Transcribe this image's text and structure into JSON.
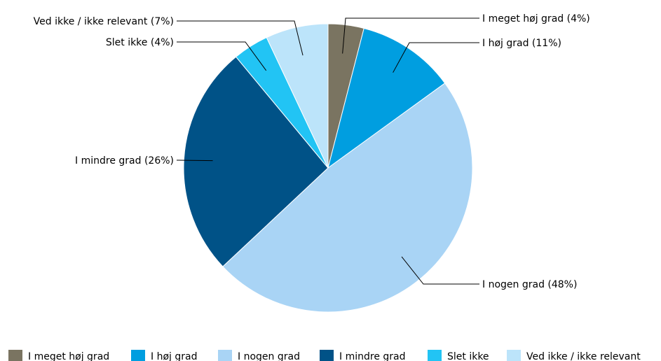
{
  "chart_data": {
    "type": "pie",
    "title": "",
    "legend_position": "bottom",
    "slices": [
      {
        "name": "I meget høj grad",
        "value": 4,
        "label": "I meget høj grad (4%)",
        "color": "#7a7461"
      },
      {
        "name": "I høj grad",
        "value": 11,
        "label": "I høj grad (11%)",
        "color": "#009ee0"
      },
      {
        "name": "I nogen grad",
        "value": 48,
        "label": "I nogen grad (48%)",
        "color": "#a9d4f5"
      },
      {
        "name": "I mindre grad",
        "value": 26,
        "label": "I mindre grad (26%)",
        "color": "#005287"
      },
      {
        "name": "Slet ikke",
        "value": 4,
        "label": "Slet ikke (4%)",
        "color": "#22c4f4"
      },
      {
        "name": "Ved ikke / ikke relevant",
        "value": 7,
        "label": "Ved ikke / ikke relevant (7%)",
        "color": "#bce4fa"
      }
    ]
  }
}
